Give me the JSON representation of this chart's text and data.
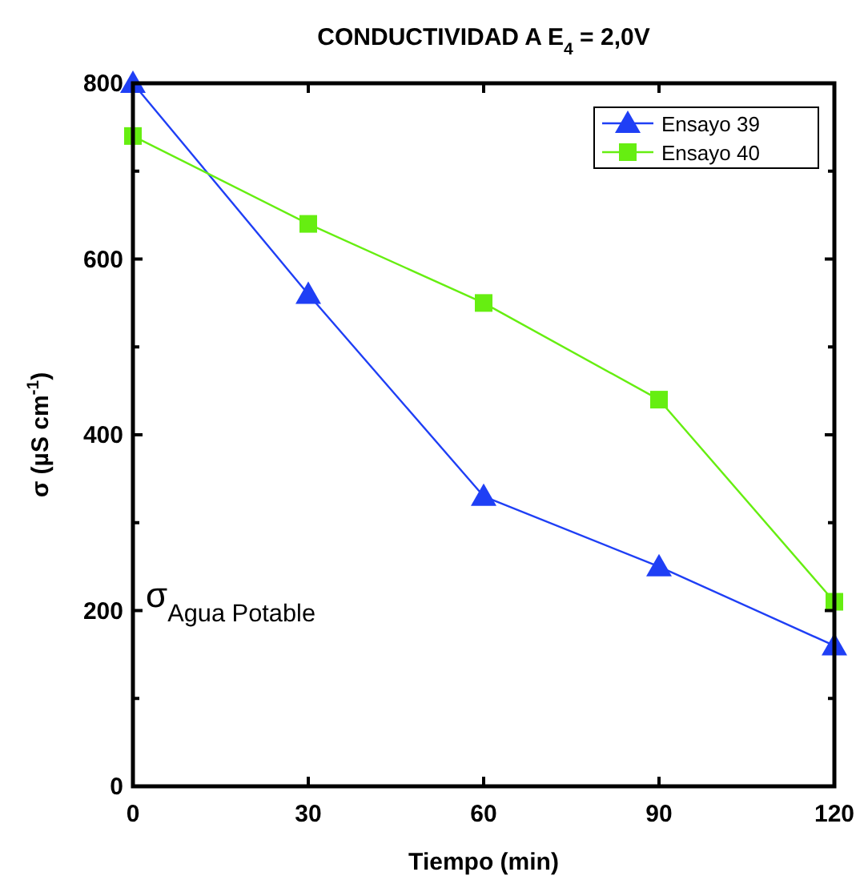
{
  "chart_data": {
    "type": "line",
    "title": "CONDUCTIVIDAD A E$_{4}$ = 2,0V",
    "xlabel": "Tiempo (min)",
    "ylabel": "σ (µS cm$^{-1}$)",
    "x": [
      0,
      30,
      60,
      90,
      120
    ],
    "series": [
      {
        "name": "Ensayo 39",
        "color": "#1f3ff5",
        "marker": "triangle",
        "values": [
          800,
          560,
          330,
          250,
          160
        ]
      },
      {
        "name": "Ensayo 40",
        "color": "#66ee11",
        "marker": "square",
        "values": [
          740,
          640,
          550,
          440,
          210
        ]
      }
    ],
    "xlim": [
      0,
      120
    ],
    "xticks": [
      0,
      30,
      60,
      90,
      120
    ],
    "ylim": [
      0,
      800
    ],
    "yticks": [
      0,
      {
        "value": 100,
        "label": null
      },
      200,
      {
        "value": 300,
        "label": null
      },
      400,
      {
        "value": 500,
        "label": null
      },
      600,
      {
        "value": 700,
        "label": null
      },
      800
    ],
    "annotations": [
      "σ$_{Agua Potable}$"
    ],
    "grid": false,
    "legend": "top right",
    "line_style": "solid"
  }
}
